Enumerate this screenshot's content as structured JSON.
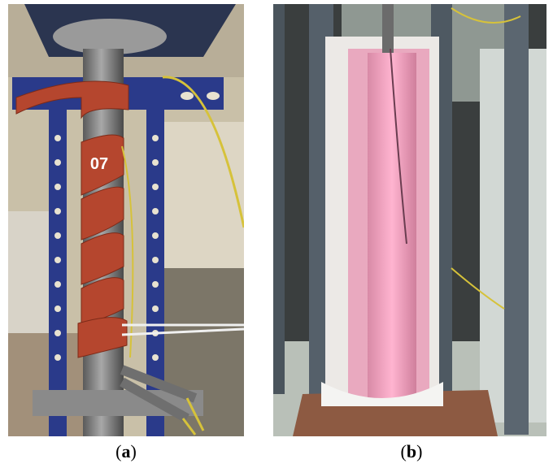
{
  "photos": [
    {
      "overlay_label": "07",
      "caption": [
        "(",
        "a",
        ")"
      ]
    },
    {
      "caption": [
        "(",
        "b",
        ")"
      ]
    }
  ]
}
